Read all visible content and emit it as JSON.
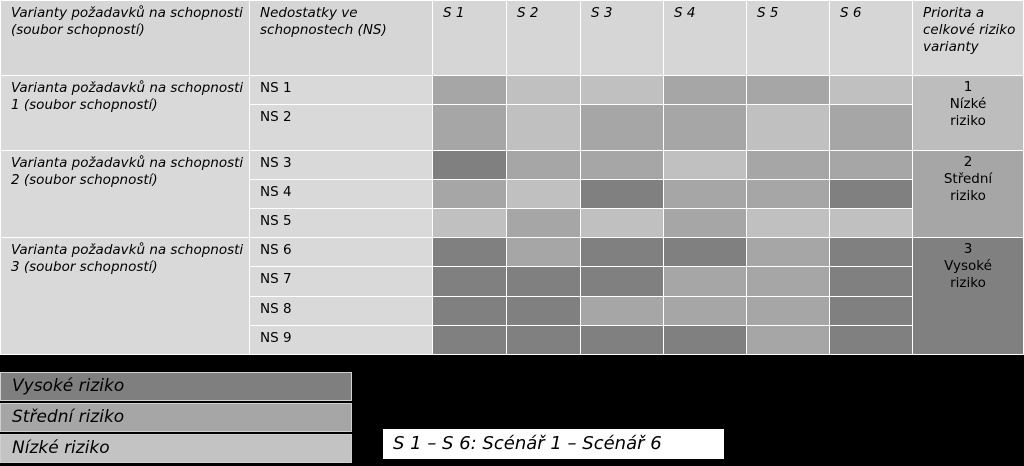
{
  "header": {
    "col1": "Varianty požadavků na schopnosti\n(soubor schopností)",
    "col2": "Nedostatky ve schopnostech (NS)",
    "scenarios": [
      "S 1",
      "S 2",
      "S 3",
      "S 4",
      "S 5",
      "S 6"
    ],
    "priority": "Priorita a celkové riziko varianty"
  },
  "variants": [
    {
      "label": "Varianta požadavků na schopnosti 1 (soubor schopností)",
      "priority": "1\nNízké\nriziko",
      "priority_level": "low",
      "rows": [
        {
          "ns": "NS 1",
          "cells": [
            "mid",
            "low",
            "low",
            "mid",
            "mid",
            "low"
          ]
        },
        {
          "ns": "NS 2",
          "cells": [
            "mid",
            "low",
            "mid",
            "mid",
            "low",
            "mid"
          ]
        }
      ]
    },
    {
      "label": "Varianta požadavků na schopnosti 2 (soubor schopností)",
      "priority": "2\nStřední\nriziko",
      "priority_level": "mid",
      "rows": [
        {
          "ns": "NS 3",
          "cells": [
            "high",
            "mid",
            "mid",
            "low",
            "mid",
            "mid"
          ]
        },
        {
          "ns": "NS 4",
          "cells": [
            "mid",
            "low",
            "high",
            "mid",
            "mid",
            "high"
          ]
        },
        {
          "ns": "NS 5",
          "cells": [
            "low",
            "mid",
            "low",
            "mid",
            "low",
            "low"
          ]
        }
      ]
    },
    {
      "label": "Varianta požadavků na schopnosti 3 (soubor schopností)",
      "priority": "3\nVysoké\nriziko",
      "priority_level": "high",
      "rows": [
        {
          "ns": "NS 6",
          "cells": [
            "high",
            "mid",
            "high",
            "high",
            "mid",
            "high"
          ]
        },
        {
          "ns": "NS 7",
          "cells": [
            "high",
            "high",
            "high",
            "mid",
            "mid",
            "high"
          ]
        },
        {
          "ns": "NS 8",
          "cells": [
            "high",
            "high",
            "mid",
            "mid",
            "mid",
            "high"
          ]
        },
        {
          "ns": "NS 9",
          "cells": [
            "high",
            "high",
            "high",
            "high",
            "mid",
            "high"
          ]
        }
      ]
    }
  ],
  "legend": {
    "high": "Vysoké riziko",
    "mid": "Střední riziko",
    "low": "Nízké riziko"
  },
  "colors": {
    "high": "#808080",
    "mid": "#a6a6a6",
    "low": "#c0c0c0"
  },
  "note": "S 1 – S 6: Scénář 1 – Scénář 6"
}
